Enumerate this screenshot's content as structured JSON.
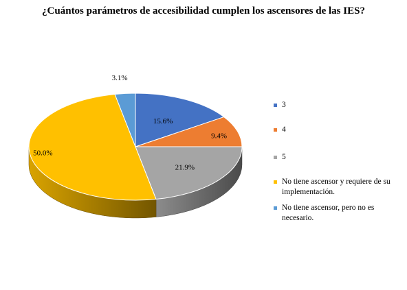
{
  "chart_data": {
    "type": "pie",
    "title": "¿Cuántos parámetros de accesibilidad cumplen los ascensores de las IES?",
    "labels": [
      "3",
      "4",
      "5",
      "No tiene ascensor y requiere de su implementación.",
      "No tiene ascensor, pero no es necesario."
    ],
    "values": [
      15.6,
      9.4,
      21.9,
      50.0,
      3.1
    ],
    "data_labels": [
      "15.6%",
      "9.4%",
      "21.9%",
      "50.0%",
      "3.1%"
    ],
    "colors": [
      "#4472C4",
      "#ED7D31",
      "#A5A5A5",
      "#FFC000",
      "#5B9BD5"
    ],
    "style": "3d",
    "legend_position": "right"
  }
}
